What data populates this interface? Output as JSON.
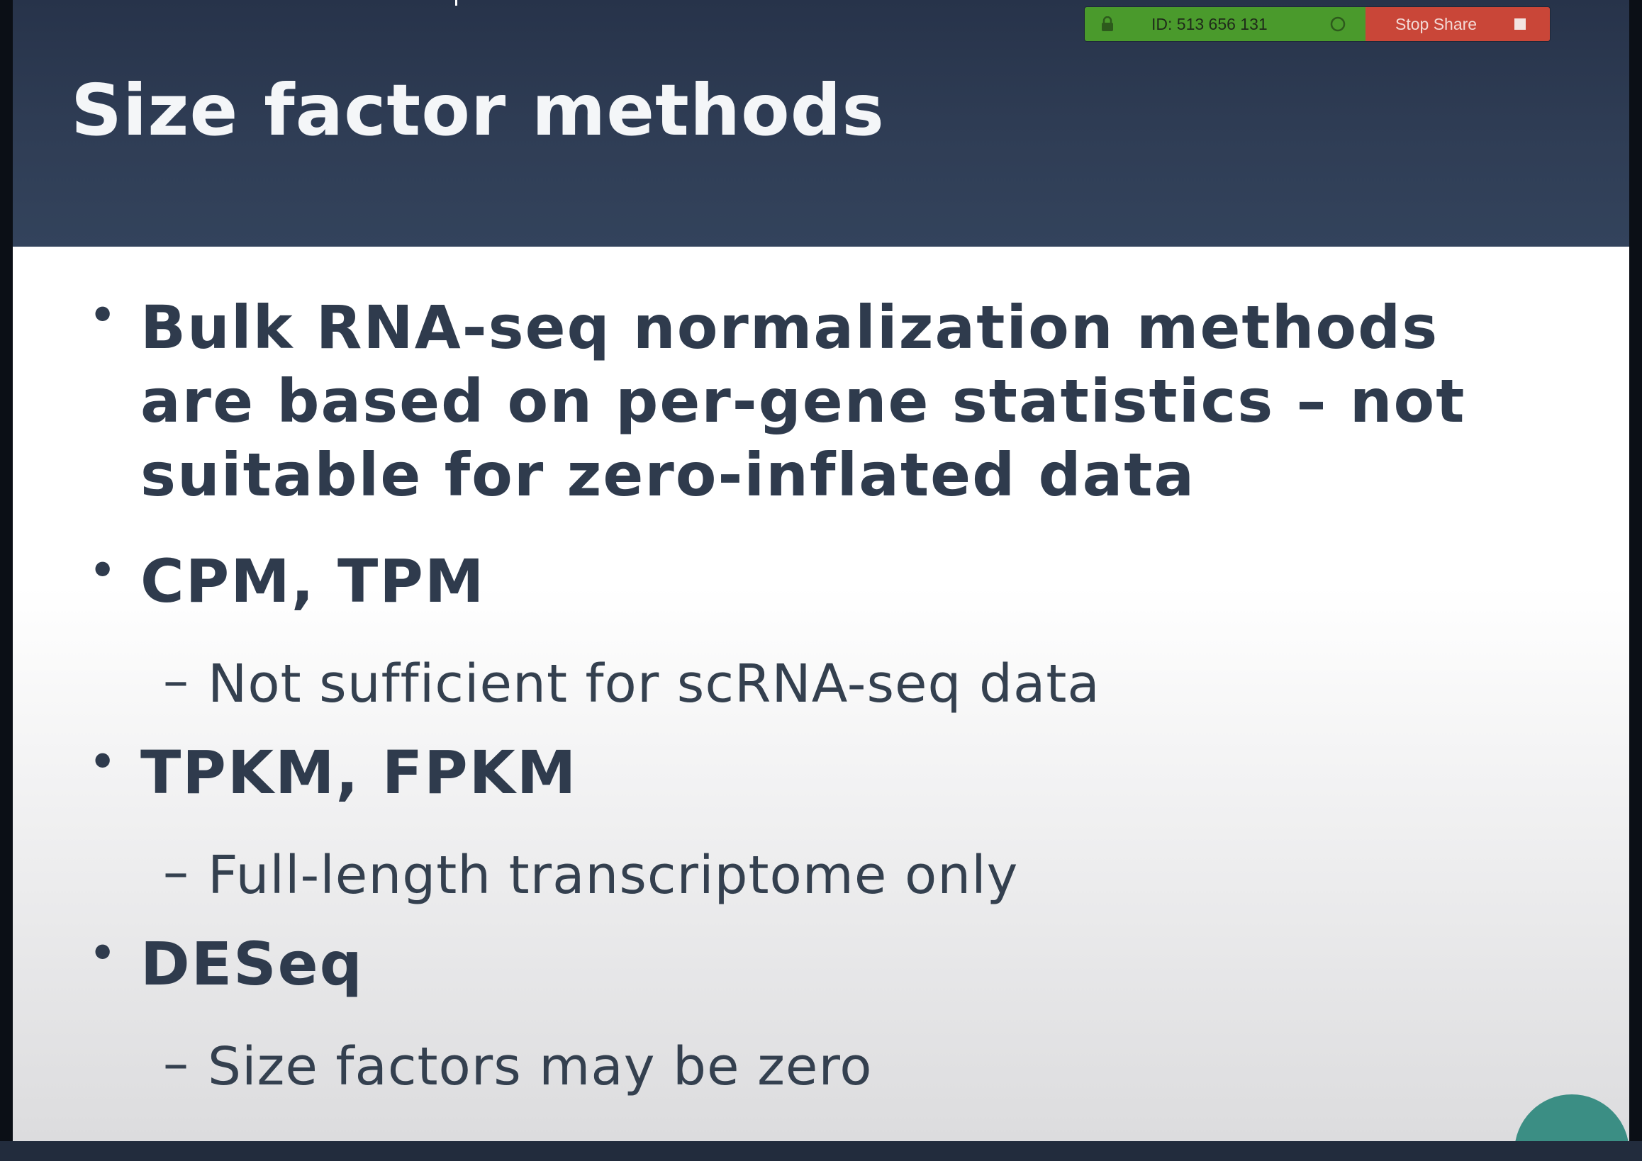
{
  "slide": {
    "title": "Size factor methods",
    "bullets": [
      {
        "text": "Bulk RNA-seq normalization methods are based on per-gene statistics – not suitable for zero-inflated data",
        "subs": []
      },
      {
        "text": "CPM, TPM",
        "subs": [
          "Not sufficient for scRNA-seq data"
        ]
      },
      {
        "text": "TPKM, FPKM",
        "subs": [
          "Full-length transcriptome only"
        ]
      },
      {
        "text": "DESeq",
        "subs": [
          "Size factors may be zero"
        ]
      }
    ],
    "bullet_glyph": "•",
    "sub_glyph": "–"
  },
  "share_toolbar": {
    "meeting_id": "ID: 513 656 131",
    "stop_label": "Stop Share",
    "id_color": "#4a9a2c",
    "stop_color": "#c94638"
  },
  "colors": {
    "header_bg": "#2f3d55",
    "title_text": "#f4f6f8",
    "body_text": "#2f3b4d"
  }
}
